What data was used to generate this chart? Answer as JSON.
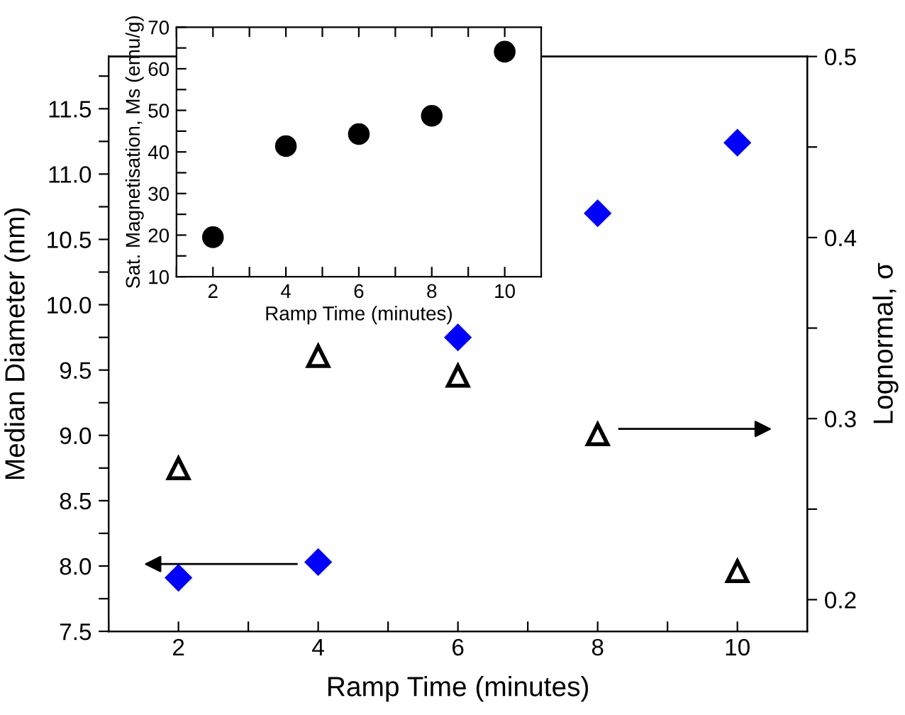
{
  "chart_data": [
    {
      "type": "scatter",
      "xlabel": "Ramp Time (minutes)",
      "ylabel": "Median Diameter (nm)",
      "y2label": "Lognormal, σ",
      "x": [
        2,
        4,
        6,
        8,
        10
      ],
      "series": [
        {
          "color": "#0000ff",
          "marker": "diamond",
          "values": [
            7.91,
            8.03,
            9.75,
            10.7,
            11.24
          ]
        },
        {
          "color": "#000000",
          "marker": "triangle",
          "axis": "y2",
          "values": [
            0.2725,
            0.3345,
            0.3236,
            0.2913,
            0.2157
          ]
        }
      ],
      "xlim": [
        1,
        11
      ],
      "xticks": [
        {
          "value": 1,
          "label": null
        },
        2,
        {
          "value": 3,
          "label": null
        },
        4,
        {
          "value": 5,
          "label": null
        },
        6,
        {
          "value": 7,
          "label": null
        },
        8,
        {
          "value": 9,
          "label": null
        },
        10
      ],
      "ylim": [
        7.5,
        11.9
      ],
      "yticks": [
        7.5,
        {
          "value": 7.75,
          "label": null
        },
        {
          "value": 8,
          "label": "8.0"
        },
        {
          "value": 8.25,
          "label": null
        },
        8.5,
        {
          "value": 8.75,
          "label": null
        },
        {
          "value": 9,
          "label": "9.0"
        },
        {
          "value": 9.25,
          "label": null
        },
        9.5,
        {
          "value": 9.75,
          "label": null
        },
        {
          "value": 10,
          "label": "10.0"
        },
        {
          "value": 10.25,
          "label": null
        },
        10.5,
        {
          "value": 10.75,
          "label": null
        },
        {
          "value": 11,
          "label": "11.0"
        },
        {
          "value": 11.25,
          "label": null
        },
        11.5,
        {
          "value": 11.75,
          "label": null
        }
      ],
      "y2lim": [
        0.1825,
        0.5
      ],
      "y2ticks": [
        0.2,
        {
          "value": 0.25,
          "label": null
        },
        0.3,
        {
          "value": 0.35,
          "label": null
        },
        0.4,
        {
          "value": 0.45,
          "label": null
        },
        0.5
      ],
      "grid": false,
      "legend": false
    },
    {
      "type": "scatter",
      "xlabel": "Ramp Time (minutes)",
      "ylabel": "Sat. Magnetisation, Ms (emu/g)",
      "x": [
        2,
        4,
        6,
        8,
        10
      ],
      "series": [
        {
          "color": "#000000",
          "marker": "circle",
          "values": [
            19.5,
            41.4,
            44.3,
            48.7,
            64.1
          ]
        }
      ],
      "xlim": [
        1,
        11
      ],
      "xticks": [
        {
          "value": 1,
          "label": null
        },
        2,
        {
          "value": 3,
          "label": null
        },
        4,
        {
          "value": 5,
          "label": null
        },
        6,
        {
          "value": 7,
          "label": null
        },
        8,
        {
          "value": 9,
          "label": null
        },
        10
      ],
      "ylim": [
        10,
        70
      ],
      "yticks": [
        10,
        {
          "value": 15,
          "label": null
        },
        20,
        {
          "value": 25,
          "label": null
        },
        30,
        {
          "value": 35,
          "label": null
        },
        40,
        {
          "value": 45,
          "label": null
        },
        50,
        {
          "value": 55,
          "label": null
        },
        60,
        {
          "value": 65,
          "label": null
        },
        70
      ],
      "grid": false,
      "legend": false
    }
  ]
}
